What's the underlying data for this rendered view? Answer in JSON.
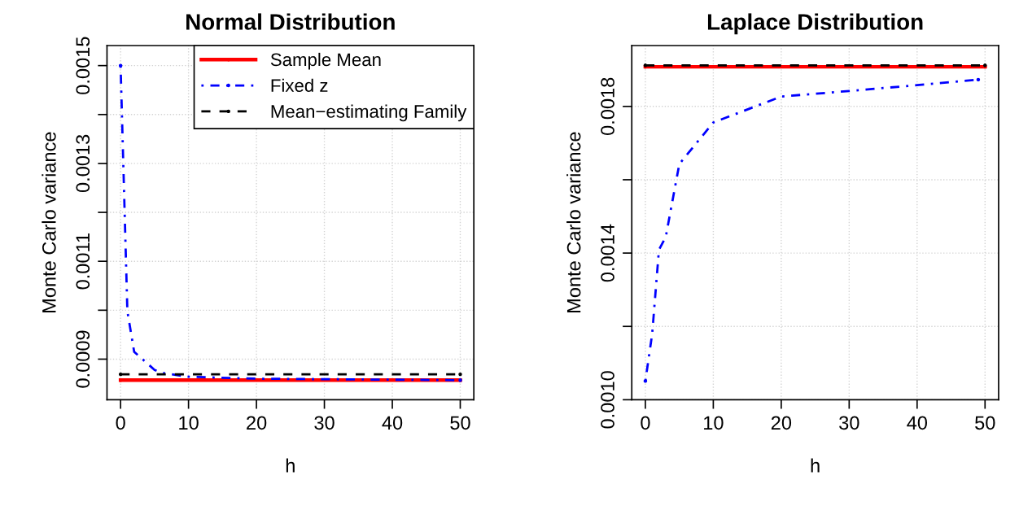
{
  "chart_data": [
    {
      "type": "line",
      "title": "Normal Distribution",
      "xlabel": "h",
      "ylabel": "Monte Carlo variance",
      "xlim": [
        -2,
        52
      ],
      "xticks": [
        0,
        10,
        20,
        30,
        40,
        50
      ],
      "ylim": [
        0.000817,
        0.001541
      ],
      "yticks": [
        {
          "value": 0.0009,
          "label": "0.0009"
        },
        {
          "value": 0.001,
          "label": null
        },
        {
          "value": 0.0011,
          "label": "0.0011"
        },
        {
          "value": 0.0012,
          "label": null
        },
        {
          "value": 0.0013,
          "label": "0.0013"
        },
        {
          "value": 0.0014,
          "label": null
        },
        {
          "value": 0.0015,
          "label": "0.0015"
        }
      ],
      "grid": true,
      "legend": "top right",
      "marker": "none",
      "series": [
        {
          "name": "Sample Mean",
          "color": "#ff0000",
          "line_style": "solid",
          "x": [
            0,
            50
          ],
          "values": [
            0.000857,
            0.000857
          ]
        },
        {
          "name": "Fixed z",
          "color": "#0000ff",
          "line_style": "dashdot",
          "x": [
            0,
            1,
            2,
            5,
            6,
            10,
            20,
            30,
            40,
            50
          ],
          "values": [
            0.0015,
            0.000998,
            0.000915,
            0.000878,
            0.000872,
            0.000864,
            0.00086,
            0.000859,
            0.000858,
            0.000857
          ]
        },
        {
          "name": "Mean−estimating Family",
          "color": "#000000",
          "line_style": "dashed",
          "x": [
            0,
            50
          ],
          "values": [
            0.000869,
            0.000869
          ]
        }
      ]
    },
    {
      "type": "line",
      "title": "Laplace Distribution",
      "xlabel": "h",
      "ylabel": "Monte Carlo variance",
      "xlim": [
        -2,
        52
      ],
      "xticks": [
        0,
        10,
        20,
        30,
        40,
        50
      ],
      "ylim": [
        0.001,
        0.001966
      ],
      "yticks": [
        {
          "value": 0.001,
          "label": "0.0010"
        },
        {
          "value": 0.0012,
          "label": null
        },
        {
          "value": 0.0014,
          "label": "0.0014"
        },
        {
          "value": 0.0016,
          "label": null
        },
        {
          "value": 0.0018,
          "label": "0.0018"
        }
      ],
      "grid": true,
      "marker": "none",
      "series": [
        {
          "color": "#ff0000",
          "line_style": "solid",
          "x": [
            0,
            50
          ],
          "values": [
            0.001908,
            0.001908
          ]
        },
        {
          "color": "#0000ff",
          "line_style": "dashdot",
          "x": [
            0,
            1,
            2,
            3,
            5,
            10,
            20,
            30,
            40,
            49
          ],
          "values": [
            0.001051,
            0.001179,
            0.001409,
            0.001444,
            0.001643,
            0.001756,
            0.001827,
            0.001842,
            0.001858,
            0.001873
          ]
        },
        {
          "color": "#000000",
          "line_style": "dashed",
          "x": [
            0,
            50
          ],
          "values": [
            0.001912,
            0.001912
          ]
        }
      ]
    }
  ]
}
